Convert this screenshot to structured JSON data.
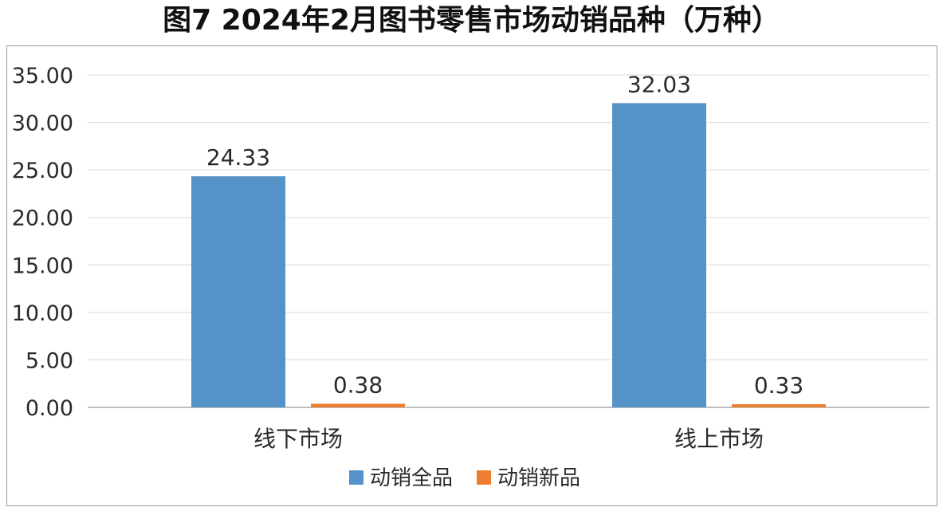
{
  "title": "图7  2024年2月图书零售市场动销品种（万种）",
  "chart_data": {
    "type": "bar",
    "categories": [
      "线下市场",
      "线上市场"
    ],
    "series": [
      {
        "name": "动销全品",
        "values": [
          24.33,
          32.03
        ],
        "color": "#5592c8"
      },
      {
        "name": "动销新品",
        "values": [
          0.38,
          0.33
        ],
        "color": "#ed7d31"
      }
    ],
    "data_labels": [
      [
        "24.33",
        "32.03"
      ],
      [
        "0.38",
        "0.33"
      ]
    ],
    "yticks": [
      "0.00",
      "5.00",
      "10.00",
      "15.00",
      "20.00",
      "25.00",
      "30.00",
      "35.00"
    ],
    "ylim": [
      0,
      35
    ],
    "grid": true,
    "legend_position": "bottom"
  }
}
